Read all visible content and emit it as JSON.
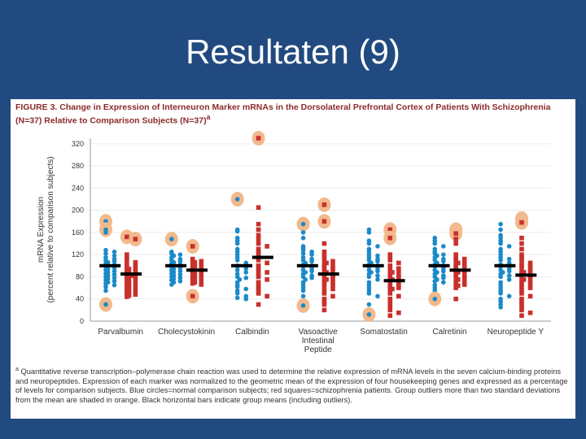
{
  "slide": {
    "title": "Resultaten (9)"
  },
  "figure": {
    "caption": "FIGURE 3. Change in Expression of Interneuron Marker mRNAs in the Dorsolateral Prefrontal Cortex of Patients With Schizophrenia (N=37) Relative to Comparison Subjects (N=37)",
    "caption_marker": "a",
    "footnote_marker": "a",
    "footnote": "Quantitative reverse transcription–polymerase chain reaction was used to determine the relative expression of mRNA levels in the seven calcium-binding proteins and neuropeptides. Expression of each marker was normalized to the geometric mean of the expression of four housekeeping genes and expressed as a percentage of levels for comparison subjects. Blue circles=normal comparison subjects; red squares=schizophrenia patients. Group outliers more than two standard deviations from the mean are shaded in orange. Black horizontal bars indicate group means (including outliers)."
  },
  "chart_data": {
    "type": "scatter",
    "ylabel_line1": "mRNA Expression",
    "ylabel_line2": "(percent relative to comparison subjects)",
    "ylim": [
      0,
      330
    ],
    "yticks": [
      0,
      40,
      80,
      120,
      160,
      200,
      240,
      280,
      320
    ],
    "grid": true,
    "categories": [
      [
        "Parvalbumin"
      ],
      [
        "Cholecystokinin"
      ],
      [
        "Calbindin"
      ],
      [
        "Vasoactive",
        "Intestinal",
        "Peptide"
      ],
      [
        "Somatostatin"
      ],
      [
        "Calretinin"
      ],
      [
        "Neuropeptide Y"
      ]
    ],
    "colors": {
      "comparison": "#1a8ac8",
      "schizophrenia": "#c8302c",
      "outlier": "#f2b98c",
      "mean": "#000000",
      "grid": "#ececec"
    },
    "groups": [
      {
        "comparison": {
          "mean": 100,
          "values": [
            180,
            165,
            160,
            128,
            125,
            122,
            118,
            115,
            112,
            110,
            108,
            106,
            104,
            102,
            100,
            98,
            96,
            94,
            92,
            90,
            88,
            86,
            84,
            82,
            80,
            78,
            76,
            74,
            72,
            70,
            68,
            65,
            62,
            55,
            30
          ],
          "outliers": [
            180,
            165,
            30
          ]
        },
        "schizophrenia": {
          "mean": 85,
          "values": [
            152,
            148,
            120,
            115,
            110,
            106,
            102,
            100,
            98,
            96,
            94,
            92,
            90,
            88,
            86,
            85,
            84,
            82,
            80,
            78,
            76,
            74,
            72,
            70,
            68,
            66,
            64,
            62,
            60,
            58,
            56,
            54,
            52,
            50,
            48,
            46,
            44
          ],
          "outliers": [
            152,
            148
          ]
        }
      },
      {
        "comparison": {
          "mean": 100,
          "values": [
            148,
            125,
            122,
            120,
            118,
            115,
            112,
            110,
            108,
            106,
            104,
            102,
            100,
            98,
            96,
            94,
            92,
            90,
            88,
            86,
            84,
            82,
            80,
            78,
            76,
            74,
            72,
            70,
            66
          ],
          "outliers": [
            148
          ]
        },
        "schizophrenia": {
          "mean": 92,
          "values": [
            135,
            112,
            110,
            108,
            106,
            104,
            102,
            100,
            98,
            96,
            94,
            92,
            90,
            88,
            86,
            84,
            82,
            80,
            78,
            76,
            74,
            72,
            70,
            68,
            66,
            45
          ],
          "outliers": [
            135,
            45
          ]
        }
      },
      {
        "comparison": {
          "mean": 100,
          "values": [
            220,
            165,
            162,
            150,
            145,
            140,
            130,
            125,
            120,
            115,
            110,
            105,
            100,
            98,
            95,
            92,
            88,
            85,
            80,
            78,
            75,
            70,
            65,
            62,
            58,
            55,
            50,
            45,
            42,
            40
          ],
          "outliers": [
            220
          ]
        },
        "schizophrenia": {
          "mean": 115,
          "values": [
            330,
            205,
            175,
            165,
            155,
            148,
            140,
            135,
            130,
            125,
            120,
            115,
            110,
            105,
            100,
            95,
            92,
            88,
            85,
            80,
            75,
            70,
            65,
            60,
            55,
            50,
            45,
            30
          ],
          "outliers": [
            330
          ]
        }
      },
      {
        "comparison": {
          "mean": 100,
          "values": [
            175,
            160,
            150,
            135,
            132,
            128,
            125,
            122,
            120,
            115,
            112,
            110,
            108,
            105,
            102,
            100,
            98,
            95,
            92,
            90,
            88,
            85,
            82,
            80,
            78,
            75,
            70,
            65,
            60,
            55,
            45,
            28
          ],
          "outliers": [
            175,
            28
          ]
        },
        "schizophrenia": {
          "mean": 85,
          "values": [
            210,
            180,
            140,
            125,
            120,
            115,
            110,
            108,
            105,
            102,
            100,
            98,
            95,
            92,
            90,
            88,
            85,
            82,
            80,
            78,
            75,
            72,
            70,
            68,
            65,
            62,
            58,
            55,
            50,
            45,
            40,
            35,
            30,
            20
          ],
          "outliers": [
            210,
            180
          ]
        }
      },
      {
        "comparison": {
          "mean": 100,
          "values": [
            165,
            160,
            145,
            140,
            135,
            130,
            125,
            120,
            118,
            115,
            112,
            110,
            108,
            105,
            102,
            100,
            98,
            95,
            92,
            90,
            88,
            85,
            82,
            80,
            75,
            70,
            65,
            60,
            55,
            50,
            45,
            30,
            12
          ],
          "outliers": [
            12
          ]
        },
        "schizophrenia": {
          "mean": 73,
          "values": [
            165,
            150,
            120,
            115,
            110,
            105,
            100,
            98,
            95,
            92,
            90,
            88,
            85,
            82,
            80,
            78,
            75,
            72,
            70,
            68,
            65,
            62,
            60,
            58,
            55,
            50,
            45,
            40,
            35,
            30,
            25,
            20,
            15,
            10
          ],
          "outliers": [
            165,
            150
          ]
        }
      },
      {
        "comparison": {
          "mean": 100,
          "values": [
            150,
            145,
            140,
            135,
            130,
            125,
            122,
            120,
            118,
            115,
            112,
            110,
            108,
            105,
            102,
            100,
            98,
            95,
            92,
            90,
            88,
            85,
            82,
            80,
            78,
            75,
            72,
            70,
            65,
            60,
            55,
            40
          ],
          "outliers": [
            40
          ]
        },
        "schizophrenia": {
          "mean": 92,
          "values": [
            165,
            158,
            148,
            140,
            120,
            115,
            112,
            110,
            108,
            105,
            102,
            100,
            98,
            95,
            92,
            90,
            88,
            85,
            82,
            80,
            78,
            75,
            72,
            70,
            68,
            66,
            64,
            60,
            40
          ],
          "outliers": [
            165,
            158
          ]
        }
      },
      {
        "comparison": {
          "mean": 100,
          "values": [
            175,
            165,
            155,
            150,
            145,
            140,
            135,
            130,
            125,
            120,
            115,
            112,
            110,
            105,
            102,
            100,
            98,
            95,
            92,
            90,
            88,
            85,
            82,
            80,
            75,
            70,
            65,
            60,
            55,
            50,
            45,
            40,
            35,
            30,
            25
          ],
          "outliers": []
        },
        "schizophrenia": {
          "mean": 83,
          "values": [
            185,
            178,
            150,
            140,
            130,
            120,
            115,
            110,
            105,
            102,
            100,
            98,
            95,
            92,
            90,
            88,
            85,
            82,
            80,
            78,
            75,
            72,
            70,
            68,
            65,
            62,
            60,
            55,
            50,
            45,
            40,
            35,
            30,
            25,
            20,
            15,
            10
          ],
          "outliers": [
            185,
            178
          ]
        }
      }
    ]
  }
}
